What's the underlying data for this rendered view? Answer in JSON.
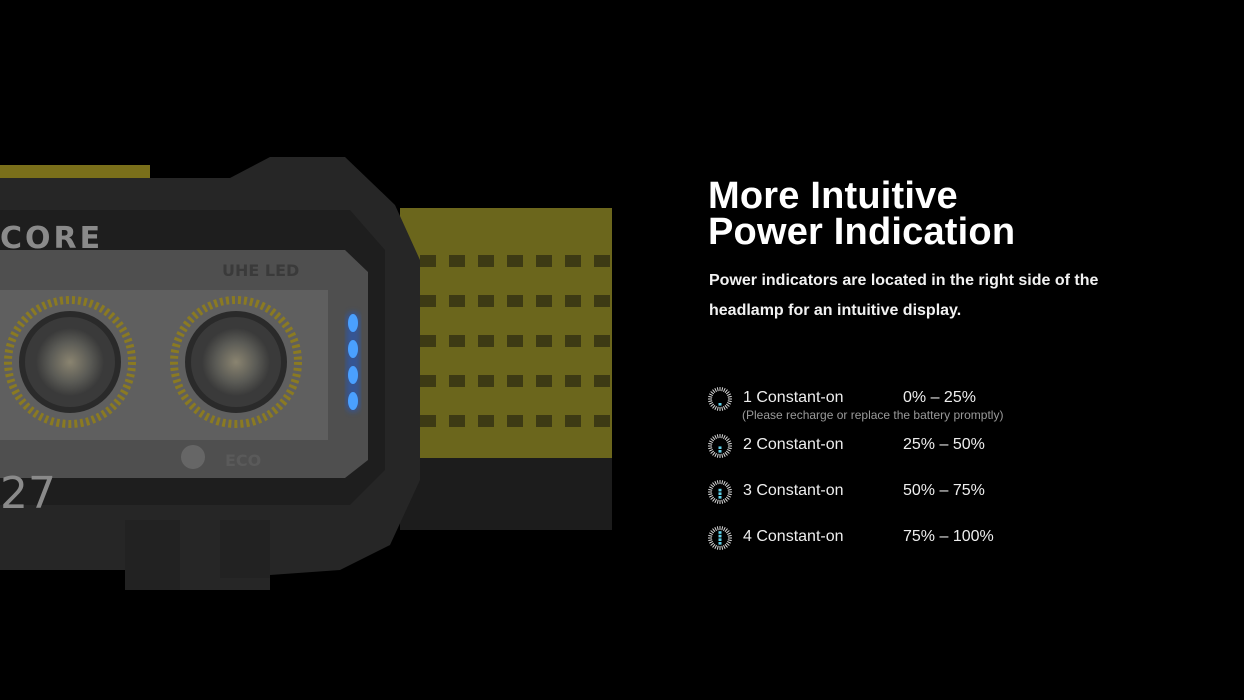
{
  "product_image": {
    "brand_text": "CORE",
    "model_text": "27",
    "led_text": "UHE LED",
    "eco_text": "ECO",
    "indicator_color": "#3a8cff",
    "strap_color": "#6b661c"
  },
  "heading": {
    "title_line1": "More Intuitive",
    "title_line2": "Power Indication",
    "description": "Power indicators are located in the right side of the headlamp for an intuitive display."
  },
  "indicators": [
    {
      "icon": "battery-level-1-icon",
      "lit": 1,
      "label": "1 Constant-on",
      "range": "0% – 25%",
      "note": "(Please recharge or replace the battery promptly)"
    },
    {
      "icon": "battery-level-2-icon",
      "lit": 2,
      "label": "2 Constant-on",
      "range": "25% – 50%"
    },
    {
      "icon": "battery-level-3-icon",
      "lit": 3,
      "label": "3 Constant-on",
      "range": "50% – 75%"
    },
    {
      "icon": "battery-level-4-icon",
      "lit": 4,
      "label": "4 Constant-on",
      "range": "75% – 100%"
    }
  ],
  "colors": {
    "icon_accent": "#5fd0e8",
    "background": "#000000"
  }
}
